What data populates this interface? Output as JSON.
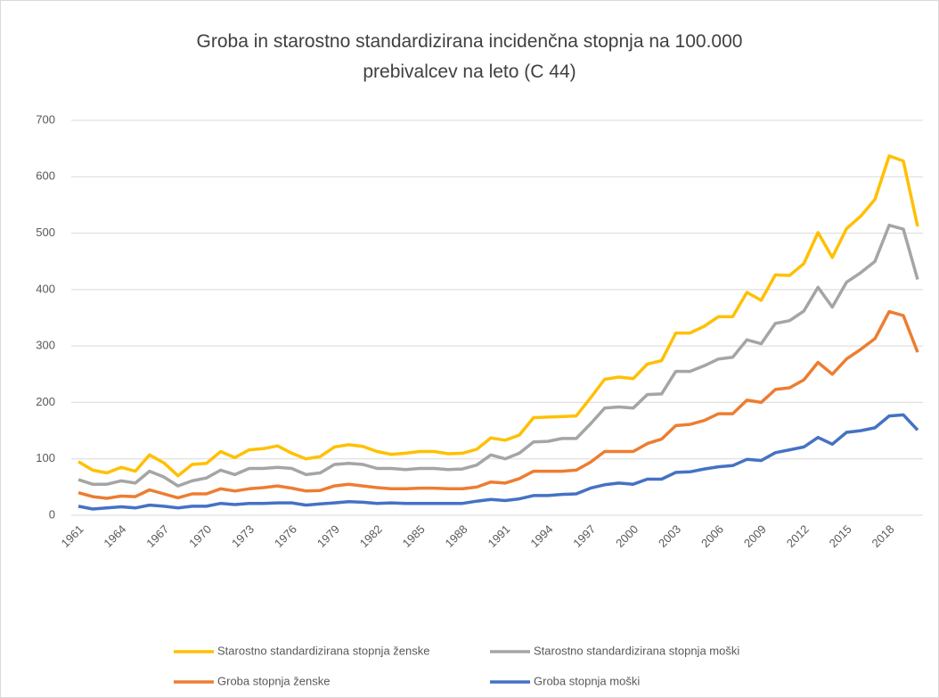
{
  "chart_data": {
    "type": "line",
    "title": "Groba in starostno standardizirana  incidenčna stopnja na 100.000 prebivalcev na leto (C 44)",
    "categories": [
      "1961",
      null,
      null,
      "1964",
      null,
      null,
      "1967",
      null,
      null,
      "1970",
      null,
      null,
      "1973",
      null,
      null,
      "1976",
      null,
      null,
      "1979",
      null,
      null,
      "1982",
      null,
      null,
      "1985",
      null,
      null,
      "1988",
      null,
      null,
      "1991",
      null,
      null,
      "1994",
      null,
      null,
      "1997",
      null,
      null,
      "2000",
      null,
      null,
      "2003",
      null,
      null,
      "2006",
      null,
      null,
      "2009",
      null,
      null,
      "2012",
      null,
      null,
      "2015",
      null,
      null,
      "2018",
      null,
      null
    ],
    "series": [
      {
        "name": "Starostno standardizirana stopnja ženske",
        "color": "#ffc000",
        "values": [
          95,
          80,
          75,
          85,
          78,
          107,
          93,
          70,
          90,
          92,
          113,
          102,
          116,
          118,
          123,
          110,
          100,
          104,
          121,
          125,
          122,
          113,
          108,
          110,
          113,
          113,
          109,
          110,
          117,
          137,
          133,
          142,
          173,
          174,
          175,
          176,
          208,
          241,
          245,
          242,
          268,
          274,
          323,
          323,
          335,
          352,
          352,
          395,
          381,
          426,
          425,
          446,
          501,
          457,
          508,
          530,
          560,
          637,
          628,
          512
        ]
      },
      {
        "name": "Starostno standardizirana stopnja moški",
        "color": "#a5a5a5",
        "values": [
          63,
          55,
          55,
          61,
          57,
          78,
          68,
          52,
          61,
          66,
          80,
          72,
          83,
          83,
          85,
          83,
          72,
          75,
          90,
          92,
          90,
          83,
          83,
          81,
          83,
          83,
          81,
          82,
          89,
          107,
          100,
          110,
          130,
          131,
          136,
          136,
          162,
          190,
          192,
          190,
          214,
          215,
          255,
          255,
          265,
          277,
          280,
          311,
          304,
          340,
          345,
          362,
          404,
          369,
          413,
          430,
          450,
          514,
          507,
          418
        ]
      },
      {
        "name": "Groba stopnja ženske",
        "color": "#ed7d31",
        "values": [
          40,
          33,
          30,
          34,
          33,
          45,
          38,
          31,
          38,
          38,
          47,
          43,
          47,
          49,
          52,
          48,
          43,
          44,
          52,
          55,
          52,
          49,
          47,
          47,
          48,
          48,
          47,
          47,
          50,
          59,
          57,
          65,
          78,
          78,
          78,
          80,
          94,
          113,
          113,
          113,
          127,
          135,
          159,
          161,
          168,
          180,
          180,
          204,
          200,
          223,
          226,
          240,
          271,
          250,
          277,
          294,
          313,
          361,
          354,
          289
        ]
      },
      {
        "name": "Groba stopnja moški",
        "color": "#4472c4",
        "values": [
          16,
          11,
          13,
          15,
          13,
          18,
          16,
          13,
          16,
          16,
          21,
          19,
          21,
          21,
          22,
          22,
          18,
          20,
          22,
          24,
          23,
          21,
          22,
          21,
          21,
          21,
          21,
          21,
          25,
          28,
          26,
          29,
          35,
          35,
          37,
          38,
          48,
          54,
          57,
          55,
          64,
          64,
          76,
          77,
          82,
          86,
          88,
          99,
          97,
          111,
          116,
          121,
          138,
          126,
          147,
          150,
          155,
          176,
          178,
          151
        ]
      }
    ],
    "ylim": [
      0,
      700
    ],
    "yticks": [
      0,
      100,
      200,
      300,
      400,
      500,
      600,
      700
    ],
    "grid": true,
    "legend": "bottom"
  }
}
